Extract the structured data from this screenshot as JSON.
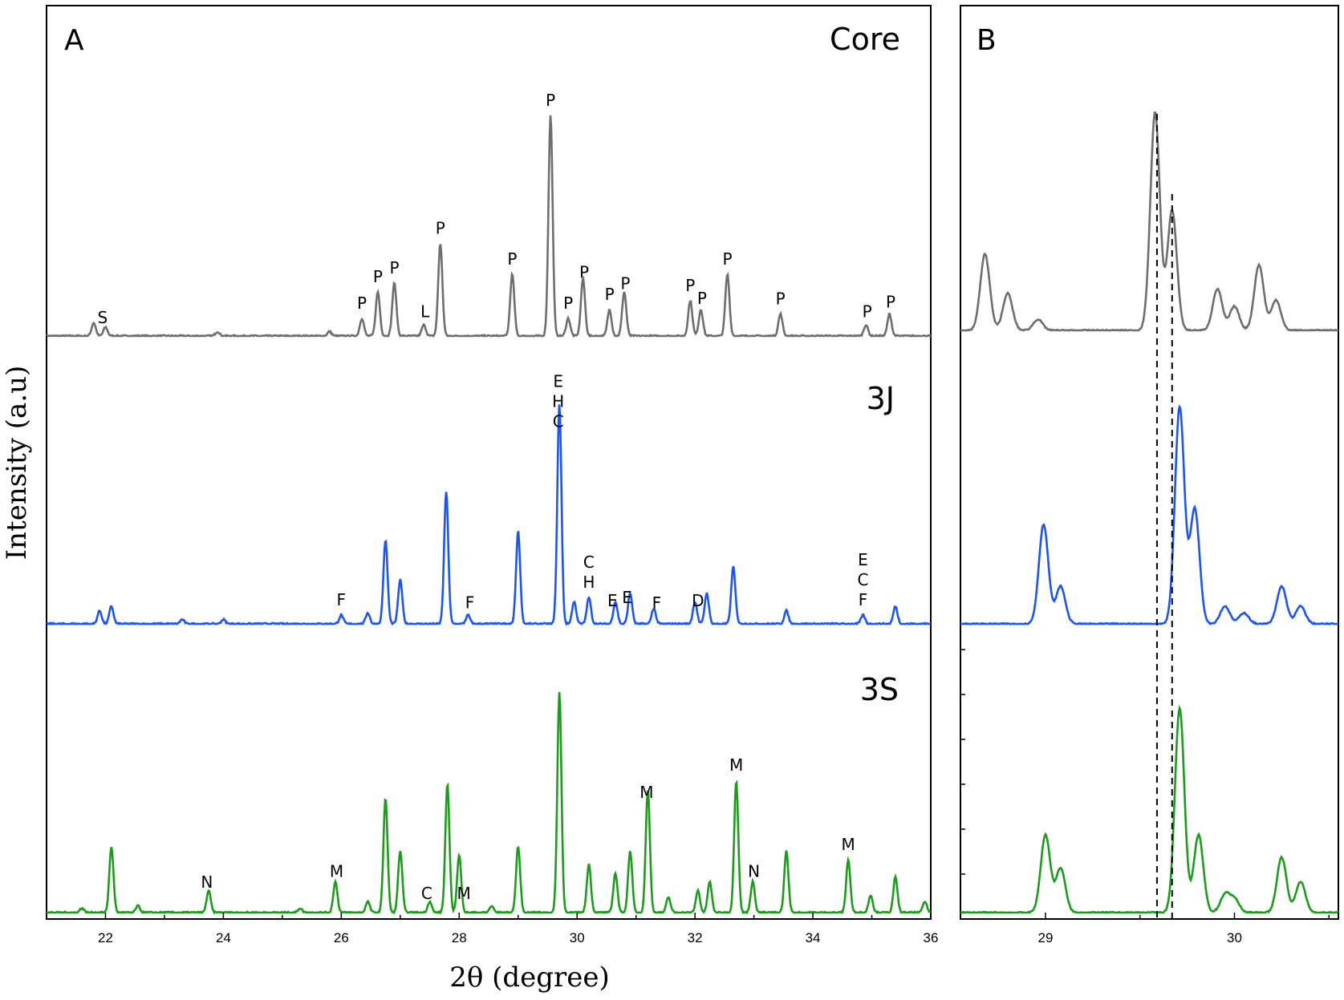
{
  "chart_data": [
    {
      "panel": "A",
      "type": "line",
      "xlabel": "2θ (degree)",
      "ylabel": "Intensity (a.u)",
      "xlim": [
        21,
        36
      ],
      "xticks": [
        "22",
        "24",
        "26",
        "28",
        "30",
        "32",
        "34",
        "36"
      ],
      "yticks_labeled": false,
      "series": [
        {
          "name": "Core",
          "color": "#6e6e6e",
          "peaks": [
            [
              21.8,
              0.06
            ],
            [
              22.0,
              0.04
            ],
            [
              23.9,
              0.02
            ],
            [
              25.8,
              0.02
            ],
            [
              26.35,
              0.08
            ],
            [
              26.62,
              0.2
            ],
            [
              26.9,
              0.24
            ],
            [
              27.4,
              0.05
            ],
            [
              27.68,
              0.42
            ],
            [
              28.9,
              0.28
            ],
            [
              29.55,
              1.0
            ],
            [
              29.85,
              0.08
            ],
            [
              30.1,
              0.26
            ],
            [
              30.55,
              0.12
            ],
            [
              30.8,
              0.2
            ],
            [
              31.92,
              0.16
            ],
            [
              32.1,
              0.12
            ],
            [
              32.55,
              0.28
            ],
            [
              33.45,
              0.1
            ],
            [
              34.9,
              0.05
            ],
            [
              35.3,
              0.1
            ]
          ],
          "annotations": [
            {
              "x": 21.95,
              "text": "S"
            },
            {
              "x": 26.35,
              "text": "P"
            },
            {
              "x": 26.62,
              "text": "P"
            },
            {
              "x": 26.9,
              "text": "P"
            },
            {
              "x": 27.42,
              "text": "L"
            },
            {
              "x": 27.68,
              "text": "P"
            },
            {
              "x": 28.9,
              "text": "P"
            },
            {
              "x": 29.55,
              "text": "P"
            },
            {
              "x": 29.85,
              "text": "P"
            },
            {
              "x": 30.12,
              "text": "P"
            },
            {
              "x": 30.55,
              "text": "P"
            },
            {
              "x": 30.82,
              "text": "P"
            },
            {
              "x": 31.92,
              "text": "P"
            },
            {
              "x": 32.12,
              "text": "P"
            },
            {
              "x": 32.55,
              "text": "P"
            },
            {
              "x": 33.45,
              "text": "P"
            },
            {
              "x": 34.92,
              "text": "P"
            },
            {
              "x": 35.32,
              "text": "P"
            }
          ]
        },
        {
          "name": "3J",
          "color": "#1a53ff",
          "peaks": [
            [
              21.9,
              0.06
            ],
            [
              22.1,
              0.08
            ],
            [
              23.3,
              0.02
            ],
            [
              24.0,
              0.02
            ],
            [
              26.0,
              0.04
            ],
            [
              26.45,
              0.05
            ],
            [
              26.75,
              0.38
            ],
            [
              27.0,
              0.2
            ],
            [
              27.78,
              0.6
            ],
            [
              28.15,
              0.04
            ],
            [
              29.0,
              0.42
            ],
            [
              29.7,
              1.0
            ],
            [
              29.95,
              0.1
            ],
            [
              30.2,
              0.12
            ],
            [
              30.65,
              0.1
            ],
            [
              30.9,
              0.14
            ],
            [
              31.3,
              0.07
            ],
            [
              32.0,
              0.1
            ],
            [
              32.2,
              0.14
            ],
            [
              32.65,
              0.26
            ],
            [
              33.55,
              0.06
            ],
            [
              34.85,
              0.04
            ],
            [
              35.4,
              0.08
            ]
          ],
          "annotations": [
            {
              "x": 29.68,
              "text": "E\nH\nC"
            },
            {
              "x": 26.0,
              "text": "F"
            },
            {
              "x": 28.18,
              "text": "F"
            },
            {
              "x": 30.2,
              "text": "C\nH"
            },
            {
              "x": 30.6,
              "text": "E"
            },
            {
              "x": 30.85,
              "text": "E"
            },
            {
              "x": 31.35,
              "text": "F"
            },
            {
              "x": 32.05,
              "text": "D"
            },
            {
              "x": 34.85,
              "text": "E\nC\nF"
            }
          ]
        },
        {
          "name": "3S",
          "color": "#1a9e1a",
          "peaks": [
            [
              21.6,
              0.02
            ],
            [
              22.1,
              0.3
            ],
            [
              22.55,
              0.03
            ],
            [
              23.75,
              0.1
            ],
            [
              25.3,
              0.02
            ],
            [
              25.9,
              0.14
            ],
            [
              26.45,
              0.05
            ],
            [
              26.75,
              0.52
            ],
            [
              27.0,
              0.28
            ],
            [
              27.5,
              0.05
            ],
            [
              27.8,
              0.58
            ],
            [
              28.0,
              0.26
            ],
            [
              28.55,
              0.03
            ],
            [
              29.0,
              0.3
            ],
            [
              29.7,
              1.0
            ],
            [
              30.2,
              0.22
            ],
            [
              30.65,
              0.18
            ],
            [
              30.9,
              0.28
            ],
            [
              31.2,
              0.56
            ],
            [
              31.55,
              0.07
            ],
            [
              32.05,
              0.1
            ],
            [
              32.25,
              0.14
            ],
            [
              32.7,
              0.6
            ],
            [
              32.98,
              0.14
            ],
            [
              33.55,
              0.28
            ],
            [
              34.6,
              0.24
            ],
            [
              34.98,
              0.08
            ],
            [
              35.4,
              0.16
            ],
            [
              35.9,
              0.05
            ]
          ],
          "annotations": [
            {
              "x": 23.72,
              "text": "N"
            },
            {
              "x": 25.92,
              "text": "M"
            },
            {
              "x": 27.45,
              "text": "C"
            },
            {
              "x": 28.08,
              "text": "M"
            },
            {
              "x": 31.18,
              "text": "M"
            },
            {
              "x": 32.7,
              "text": "M"
            },
            {
              "x": 33.0,
              "text": "N"
            },
            {
              "x": 34.6,
              "text": "M"
            }
          ]
        }
      ]
    },
    {
      "panel": "B",
      "type": "line",
      "xlim": [
        28.55,
        30.55
      ],
      "xticks": [
        "29",
        "30"
      ],
      "yticks_labeled": false,
      "reference_lines_x": [
        29.59,
        29.67
      ],
      "series": [
        {
          "name": "Core",
          "color": "#6e6e6e",
          "peaks": [
            [
              28.68,
              0.35
            ],
            [
              28.8,
              0.17
            ],
            [
              28.96,
              0.05
            ],
            [
              29.58,
              1.0
            ],
            [
              29.67,
              0.55
            ],
            [
              29.91,
              0.19
            ],
            [
              30.0,
              0.11
            ],
            [
              30.13,
              0.3
            ],
            [
              30.22,
              0.14
            ]
          ]
        },
        {
          "name": "3J",
          "color": "#1a53ff",
          "peaks": [
            [
              28.99,
              0.45
            ],
            [
              29.08,
              0.17
            ],
            [
              29.71,
              0.98
            ],
            [
              29.79,
              0.52
            ],
            [
              29.95,
              0.08
            ],
            [
              30.05,
              0.05
            ],
            [
              30.25,
              0.17
            ],
            [
              30.35,
              0.08
            ]
          ]
        },
        {
          "name": "3S",
          "color": "#1a9e1a",
          "peaks": [
            [
              29.0,
              0.35
            ],
            [
              29.08,
              0.2
            ],
            [
              29.71,
              0.92
            ],
            [
              29.81,
              0.35
            ],
            [
              29.95,
              0.08
            ],
            [
              30.0,
              0.06
            ],
            [
              30.25,
              0.25
            ],
            [
              30.35,
              0.14
            ]
          ]
        }
      ]
    }
  ],
  "labels": {
    "panel_a": "A",
    "panel_b": "B",
    "series_core": "Core",
    "series_3j": "3J",
    "series_3s": "3S",
    "xlabel": "2θ (degree)",
    "ylabel": "Intensity (a.u)"
  }
}
